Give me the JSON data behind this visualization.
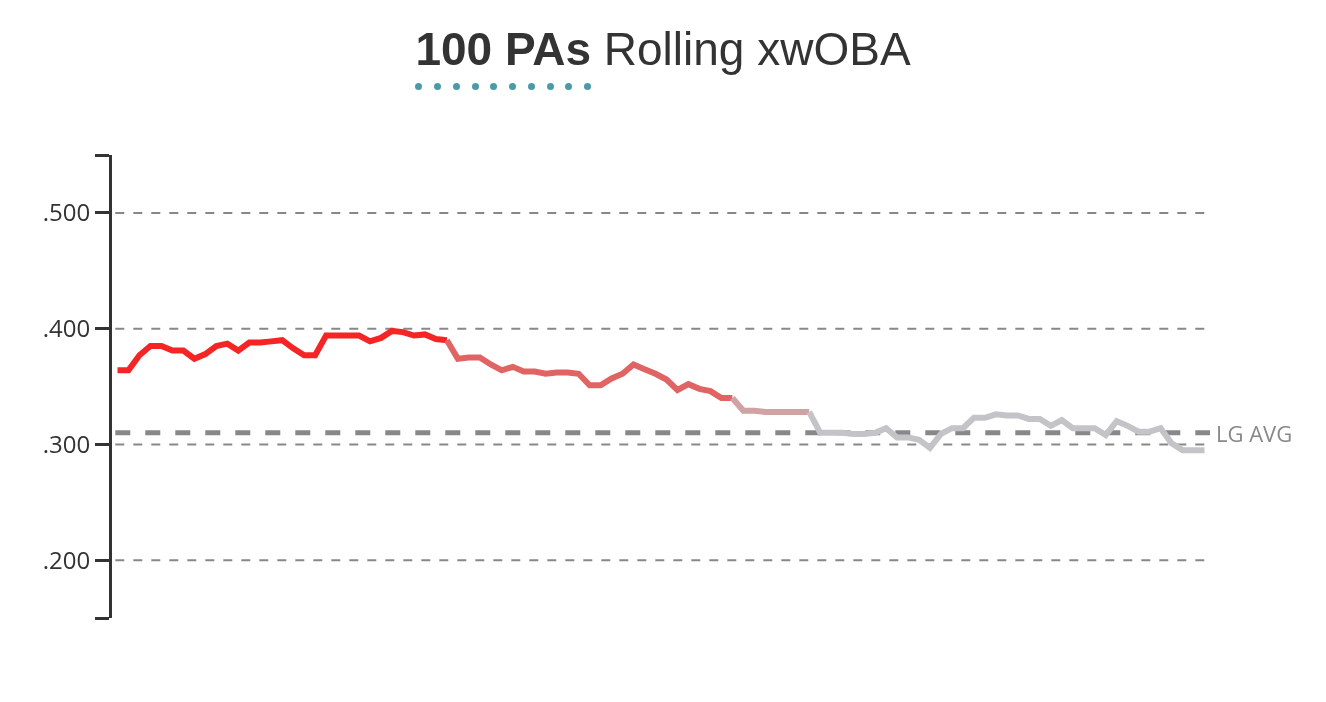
{
  "chart_data": {
    "type": "line",
    "title": "100 PAs Rolling xwOBA",
    "categories": [
      null,
      null,
      null,
      null,
      null,
      null,
      null,
      null,
      null,
      null,
      null,
      null,
      null,
      null,
      null,
      null,
      null,
      null,
      null,
      null,
      null,
      null,
      null,
      null,
      null,
      null,
      null,
      null,
      null,
      null,
      null,
      null,
      null,
      null,
      null,
      null,
      null,
      null,
      null,
      null,
      null,
      null,
      null,
      null,
      null,
      null,
      null,
      null,
      null,
      null,
      null,
      null,
      null,
      null,
      null,
      null,
      null,
      null,
      null,
      null,
      null,
      null,
      null,
      null,
      null,
      null,
      null,
      null,
      null,
      null,
      null,
      null,
      null,
      null,
      null,
      null,
      null,
      null,
      null,
      null,
      null,
      null,
      null,
      null,
      null,
      null,
      null,
      null,
      null,
      null,
      null,
      null,
      null,
      null,
      null,
      null,
      null,
      null,
      null,
      null
    ],
    "series": [
      {
        "color": "#f52525",
        "values": [
          0.364,
          0.364,
          0.377,
          0.385,
          0.385,
          0.381,
          0.381,
          0.374,
          0.378,
          0.385,
          0.387,
          0.381,
          0.388,
          0.388,
          0.389,
          0.39,
          0.383,
          0.377,
          0.377,
          0.394,
          0.394,
          0.394,
          0.394,
          0.389,
          0.392,
          0.398,
          0.397,
          0.394,
          0.395,
          0.391,
          0.39,
          null,
          null,
          null,
          null,
          null,
          null,
          null,
          null,
          null,
          null,
          null,
          null,
          null,
          null,
          null,
          null,
          null,
          null,
          null,
          null,
          null,
          null,
          null,
          null,
          null,
          null,
          null,
          null,
          null,
          null,
          null,
          null,
          null,
          null,
          null,
          null,
          null,
          null,
          null,
          null,
          null,
          null,
          null,
          null,
          null,
          null,
          null,
          null,
          null,
          null,
          null,
          null,
          null,
          null,
          null,
          null,
          null,
          null,
          null,
          null,
          null,
          null,
          null,
          null,
          null,
          null,
          null,
          null,
          null
        ]
      },
      {
        "color": "#e06464",
        "values": [
          null,
          null,
          null,
          null,
          null,
          null,
          null,
          null,
          null,
          null,
          null,
          null,
          null,
          null,
          null,
          null,
          null,
          null,
          null,
          null,
          null,
          null,
          null,
          null,
          null,
          null,
          null,
          null,
          null,
          null,
          0.39,
          0.374,
          0.375,
          0.375,
          0.369,
          0.364,
          0.367,
          0.363,
          0.363,
          0.361,
          0.362,
          0.362,
          0.361,
          0.351,
          0.351,
          0.357,
          0.361,
          0.369,
          0.365,
          0.361,
          0.356,
          0.347,
          0.352,
          0.348,
          0.346,
          0.34,
          0.34,
          null,
          null,
          null,
          null,
          null,
          null,
          null,
          null,
          null,
          null,
          null,
          null,
          null,
          null,
          null,
          null,
          null,
          null,
          null,
          null,
          null,
          null,
          null,
          null,
          null,
          null,
          null,
          null,
          null,
          null,
          null,
          null,
          null,
          null,
          null,
          null,
          null,
          null,
          null,
          null,
          null,
          null,
          null
        ]
      },
      {
        "color": "#cfa3a3",
        "values": [
          null,
          null,
          null,
          null,
          null,
          null,
          null,
          null,
          null,
          null,
          null,
          null,
          null,
          null,
          null,
          null,
          null,
          null,
          null,
          null,
          null,
          null,
          null,
          null,
          null,
          null,
          null,
          null,
          null,
          null,
          null,
          null,
          null,
          null,
          null,
          null,
          null,
          null,
          null,
          null,
          null,
          null,
          null,
          null,
          null,
          null,
          null,
          null,
          null,
          null,
          null,
          null,
          null,
          null,
          null,
          null,
          0.34,
          0.329,
          0.329,
          0.328,
          0.328,
          0.328,
          0.328,
          0.328,
          null,
          null,
          null,
          null,
          null,
          null,
          null,
          null,
          null,
          null,
          null,
          null,
          null,
          null,
          null,
          null,
          null,
          null,
          null,
          null,
          null,
          null,
          null,
          null,
          null,
          null,
          null,
          null,
          null,
          null,
          null,
          null,
          null,
          null,
          null,
          null
        ]
      },
      {
        "color": "#c4c4c8",
        "values": [
          null,
          null,
          null,
          null,
          null,
          null,
          null,
          null,
          null,
          null,
          null,
          null,
          null,
          null,
          null,
          null,
          null,
          null,
          null,
          null,
          null,
          null,
          null,
          null,
          null,
          null,
          null,
          null,
          null,
          null,
          null,
          null,
          null,
          null,
          null,
          null,
          null,
          null,
          null,
          null,
          null,
          null,
          null,
          null,
          null,
          null,
          null,
          null,
          null,
          null,
          null,
          null,
          null,
          null,
          null,
          null,
          null,
          null,
          null,
          null,
          null,
          null,
          null,
          0.328,
          0.31,
          0.31,
          0.31,
          0.309,
          0.309,
          0.31,
          0.314,
          0.306,
          0.306,
          0.304,
          0.297,
          0.309,
          0.314,
          0.314,
          0.323,
          0.323,
          0.326,
          0.325,
          0.325,
          0.322,
          0.322,
          0.316,
          0.321,
          0.314,
          0.314,
          0.314,
          0.308,
          0.32,
          0.316,
          0.311,
          0.311,
          0.314,
          0.301,
          0.295,
          0.295,
          0.295
        ]
      }
    ],
    "ylim": [
      0.15,
      0.55
    ],
    "yticks": [
      {
        "value": 0.15,
        "label": null
      },
      {
        "value": 0.2,
        "label": ".200"
      },
      {
        "value": 0.3,
        "label": ".300"
      },
      {
        "value": 0.4,
        "label": ".400"
      },
      {
        "value": 0.5,
        "label": ".500"
      },
      {
        "value": 0.55,
        "label": null
      }
    ],
    "tick_labels": "y",
    "grid": "y",
    "line_style": "solid",
    "marker": "none",
    "ref_lines": [
      {
        "axis": "y",
        "value": 0.31,
        "label": "LG AVG",
        "color": "#888888",
        "line_style": "dashed"
      }
    ]
  }
}
